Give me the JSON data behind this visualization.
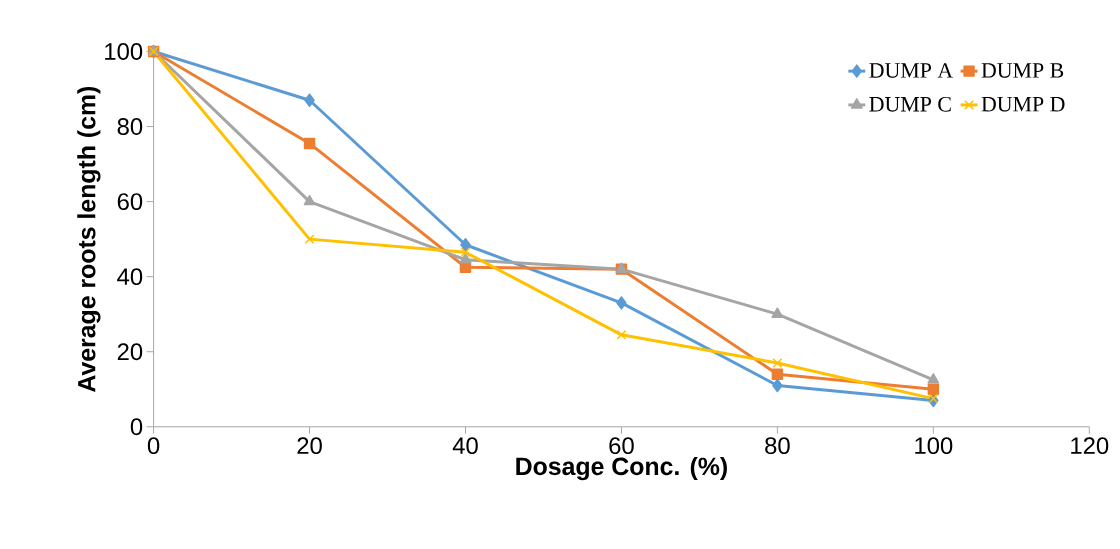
{
  "chart_data": {
    "type": "line",
    "xlabel": "Dosage Conc.  (%)",
    "ylabel": "Average roots length (cm)",
    "x": [
      0,
      20,
      40,
      60,
      80,
      100
    ],
    "xlim": [
      0,
      120
    ],
    "xticks": [
      0,
      20,
      40,
      60,
      80,
      100,
      120
    ],
    "ylim": [
      0,
      100
    ],
    "yticks": [
      0,
      20,
      40,
      60,
      80,
      100
    ],
    "grid": false,
    "legend": "top right",
    "line_style": "solid",
    "series": [
      {
        "name": "DUMP A",
        "color": "#5b9bd5",
        "marker": "diamond",
        "values": [
          100,
          87,
          48.5,
          33,
          11,
          7
        ]
      },
      {
        "name": "DUMP B",
        "color": "#ed7d31",
        "marker": "square",
        "values": [
          100,
          75.5,
          42.5,
          42,
          14,
          10
        ]
      },
      {
        "name": "DUMP C",
        "color": "#a5a5a5",
        "marker": "triangle",
        "values": [
          100,
          60,
          44.5,
          42,
          30,
          12.5
        ]
      },
      {
        "name": "DUMP D",
        "color": "#ffc000",
        "marker": "cross",
        "values": [
          100,
          50,
          46.5,
          24.5,
          17,
          7.5
        ]
      }
    ]
  }
}
